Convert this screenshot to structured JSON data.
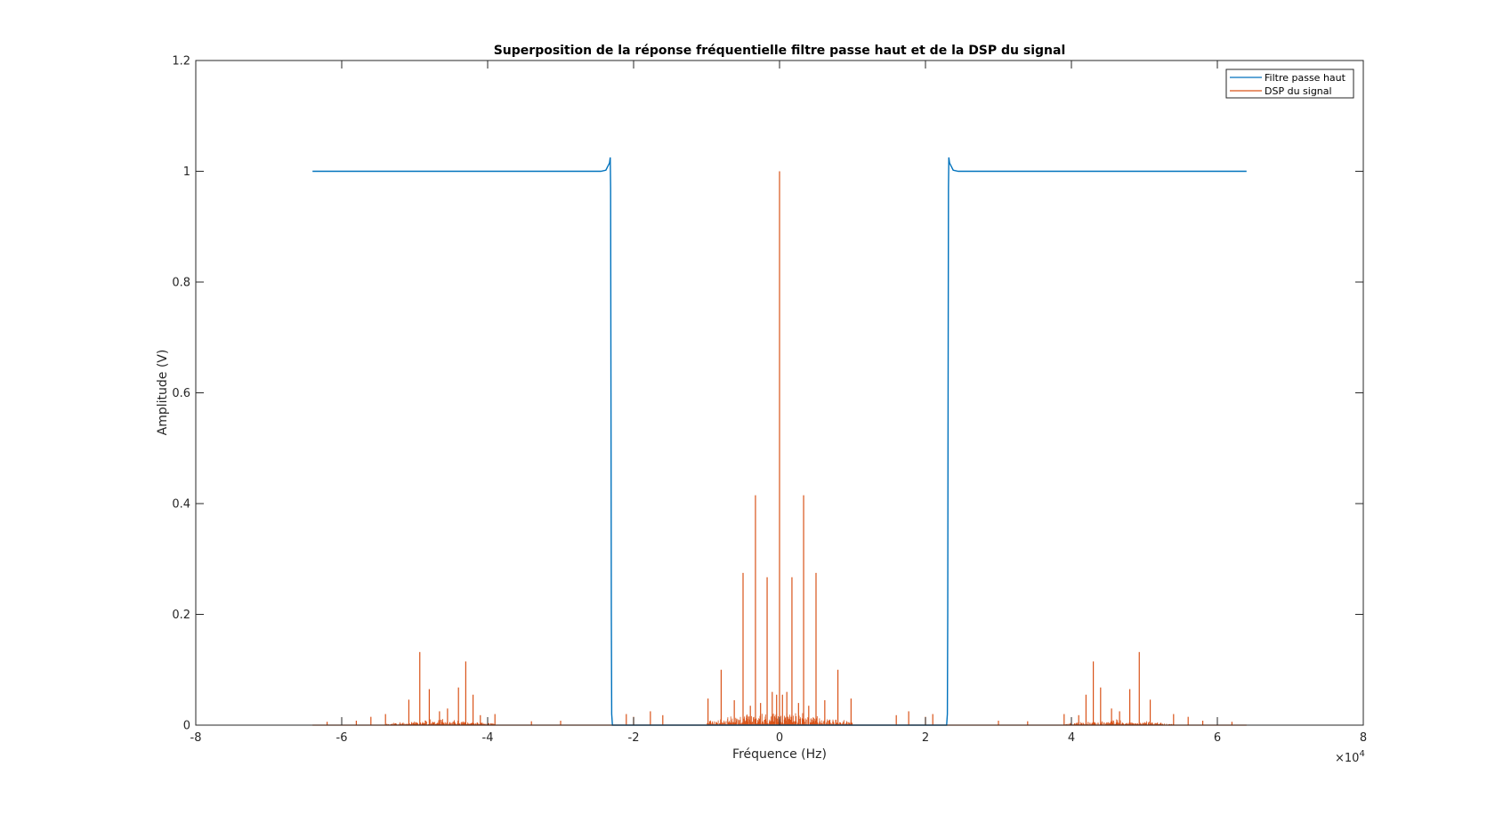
{
  "chart_data": {
    "type": "line",
    "title": "Superposition de la réponse fréquentielle filtre passe haut et de la DSP du signal",
    "xlabel": "Fréquence (Hz)",
    "ylabel": "Amplitude (V)",
    "xlim": [
      -8,
      8
    ],
    "ylim": [
      0,
      1.2
    ],
    "x_exponent_label": "×10",
    "x_exponent_power": "4",
    "x_ticks": [
      "-8",
      "-6",
      "-4",
      "-2",
      "0",
      "2",
      "4",
      "6",
      "8"
    ],
    "y_ticks": [
      "0",
      "0.2",
      "0.4",
      "0.6",
      "0.8",
      "1",
      "1.2"
    ],
    "grid": false,
    "legend_position": "top-right",
    "series": [
      {
        "name": "Filtre passe haut",
        "color": "#0072BD",
        "points": [
          [
            -6.4,
            1.0
          ],
          [
            -2.45,
            1.0
          ],
          [
            -2.38,
            1.002
          ],
          [
            -2.33,
            1.015
          ],
          [
            -2.32,
            1.025
          ],
          [
            -2.315,
            0.97
          ],
          [
            -2.31,
            0.6
          ],
          [
            -2.305,
            0.2
          ],
          [
            -2.3,
            0.02
          ],
          [
            -2.29,
            0.0
          ],
          [
            2.29,
            0.0
          ],
          [
            2.3,
            0.02
          ],
          [
            2.305,
            0.2
          ],
          [
            2.31,
            0.6
          ],
          [
            2.315,
            0.97
          ],
          [
            2.32,
            1.025
          ],
          [
            2.33,
            1.015
          ],
          [
            2.38,
            1.002
          ],
          [
            2.45,
            1.0
          ],
          [
            6.4,
            1.0
          ]
        ]
      },
      {
        "name": "DSP du signal",
        "color": "#D95319",
        "baseline_range": [
          -6.4,
          6.4
        ],
        "peaks": [
          [
            0.0,
            1.0
          ],
          [
            -0.33,
            0.415
          ],
          [
            0.33,
            0.415
          ],
          [
            -0.5,
            0.275
          ],
          [
            0.5,
            0.275
          ],
          [
            -0.17,
            0.267
          ],
          [
            0.17,
            0.267
          ],
          [
            -0.8,
            0.1
          ],
          [
            0.8,
            0.1
          ],
          [
            -0.98,
            0.048
          ],
          [
            0.98,
            0.048
          ],
          [
            -0.62,
            0.045
          ],
          [
            0.62,
            0.045
          ],
          [
            -0.1,
            0.06
          ],
          [
            0.1,
            0.06
          ],
          [
            -0.04,
            0.055
          ],
          [
            0.04,
            0.055
          ],
          [
            -0.26,
            0.04
          ],
          [
            0.26,
            0.04
          ],
          [
            -0.4,
            0.035
          ],
          [
            0.4,
            0.035
          ],
          [
            -4.93,
            0.132
          ],
          [
            -4.3,
            0.115
          ],
          [
            -4.4,
            0.068
          ],
          [
            -4.8,
            0.065
          ],
          [
            -4.2,
            0.055
          ],
          [
            -5.08,
            0.046
          ],
          [
            -4.55,
            0.03
          ],
          [
            -4.66,
            0.025
          ],
          [
            -3.9,
            0.02
          ],
          [
            -5.4,
            0.02
          ],
          [
            -5.6,
            0.015
          ],
          [
            -4.1,
            0.018
          ],
          [
            4.93,
            0.132
          ],
          [
            4.3,
            0.115
          ],
          [
            4.4,
            0.068
          ],
          [
            4.8,
            0.065
          ],
          [
            4.2,
            0.055
          ],
          [
            5.08,
            0.046
          ],
          [
            4.55,
            0.03
          ],
          [
            4.66,
            0.025
          ],
          [
            3.9,
            0.02
          ],
          [
            5.4,
            0.02
          ],
          [
            5.6,
            0.015
          ],
          [
            4.1,
            0.018
          ],
          [
            -1.77,
            0.025
          ],
          [
            -2.1,
            0.02
          ],
          [
            -1.6,
            0.018
          ],
          [
            -2.0,
            0.015
          ],
          [
            1.77,
            0.025
          ],
          [
            2.1,
            0.02
          ],
          [
            1.6,
            0.018
          ],
          [
            2.0,
            0.015
          ],
          [
            -3.0,
            0.008
          ],
          [
            -3.4,
            0.007
          ],
          [
            -5.8,
            0.008
          ],
          [
            -6.2,
            0.006
          ],
          [
            3.0,
            0.008
          ],
          [
            3.4,
            0.007
          ],
          [
            5.8,
            0.008
          ],
          [
            6.2,
            0.006
          ]
        ]
      }
    ]
  }
}
